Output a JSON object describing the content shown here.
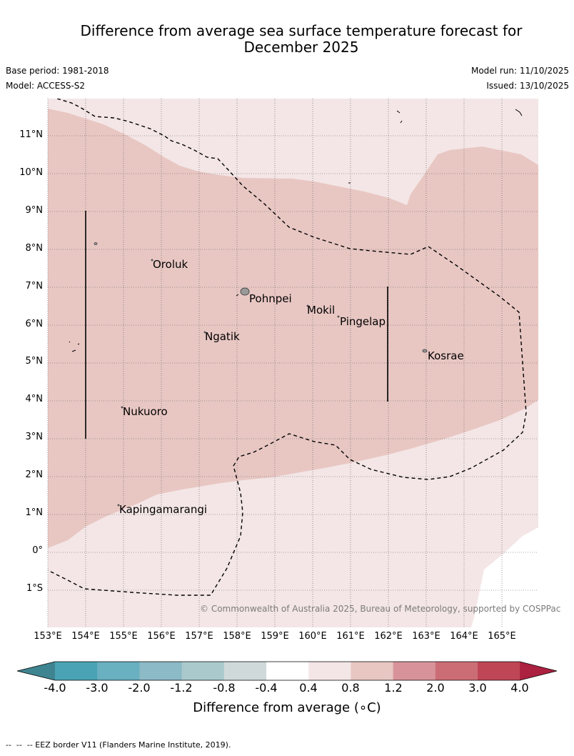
{
  "title_line1": "Difference from average sea surface temperature forecast for",
  "title_line2": "December 2025",
  "base_period": "Base period: 1981-2018",
  "model": "Model: ACCESS-S2",
  "model_run": "Model run: 11/10/2025",
  "issued": "Issued: 13/10/2025",
  "lat_labels": [
    "11°N",
    "10°N",
    "9°N",
    "8°N",
    "7°N",
    "6°N",
    "5°N",
    "4°N",
    "3°N",
    "2°N",
    "1°N",
    "0°",
    "1°S"
  ],
  "lon_labels": [
    "153°E",
    "154°E",
    "155°E",
    "156°E",
    "157°E",
    "158°E",
    "159°E",
    "160°E",
    "161°E",
    "162°E",
    "163°E",
    "164°E",
    "165°E"
  ],
  "places": {
    "oroluk": "Oroluk",
    "pohnpei": "Pohnpei",
    "mokil": "Mokil",
    "pingelap": "Pingelap",
    "ngatik": "Ngatik",
    "kosrae": "Kosrae",
    "nukuoro": "Nukuoro",
    "kapingamarangi": "Kapingamarangi"
  },
  "copyright": "© Commonwealth of Australia 2025, Bureau of Meteorology, supported by COSPPac",
  "colorbar": {
    "title": "Difference from average (∘C)",
    "ticks": [
      "-4.0",
      "-3.0",
      "-2.0",
      "-1.2",
      "-0.8",
      "-0.4",
      "0.4",
      "0.8",
      "1.2",
      "2.0",
      "3.0",
      "4.0"
    ],
    "colors": [
      "#4aa3b5",
      "#69b0c0",
      "#8cbac6",
      "#aac9cd",
      "#d0d9da",
      "#ffffff",
      "#f4e6e6",
      "#e8c7c3",
      "#d8939a",
      "#cc6d76",
      "#bf4755"
    ],
    "under_color": "#3f8591",
    "over_color": "#ac2040"
  },
  "footnote": "--  --  -- EEZ border V11 (Flanders Marine Institute, 2019)."
}
